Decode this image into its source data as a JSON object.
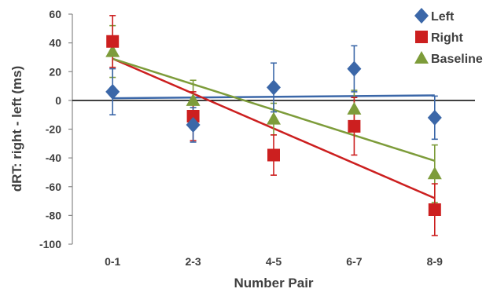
{
  "chart_data": {
    "type": "scatter",
    "xlabel": "Number Pair",
    "ylabel": "dRT: right - left (ms)",
    "categories": [
      "0-1",
      "2-3",
      "4-5",
      "6-7",
      "8-9"
    ],
    "ylim": [
      -100,
      60
    ],
    "yticks": [
      60,
      40,
      20,
      0,
      -20,
      -40,
      -60,
      -80,
      -100
    ],
    "grid": false,
    "legend_position": "top-right",
    "zero_line": true,
    "series": [
      {
        "name": "Left",
        "marker": "diamond",
        "color": "#3b67a8",
        "values": [
          6,
          -17,
          9,
          22,
          -12
        ],
        "error": [
          16,
          12,
          17,
          16,
          15
        ],
        "trend": [
          1.5,
          3.5
        ]
      },
      {
        "name": "Right",
        "marker": "square",
        "color": "#cc1f1f",
        "values": [
          41,
          -11,
          -38,
          -18,
          -76
        ],
        "error": [
          18,
          17,
          14,
          20,
          18
        ],
        "trend": [
          29,
          -68
        ]
      },
      {
        "name": "Baseline",
        "marker": "triangle",
        "color": "#7d9c3a",
        "values": [
          34,
          0,
          -13,
          -6,
          -51
        ],
        "error": [
          18,
          14,
          11,
          13,
          20
        ],
        "trend": [
          29,
          -42
        ]
      }
    ]
  }
}
